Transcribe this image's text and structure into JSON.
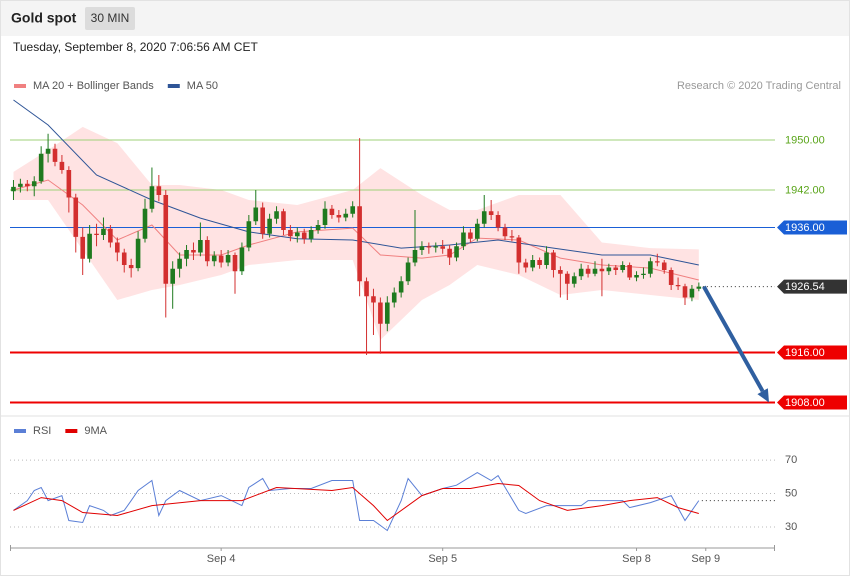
{
  "header": {
    "title": "Gold spot",
    "timeframe": "30 MIN",
    "timestamp": "Tuesday, September 8, 2020 7:06:56 AM CET"
  },
  "chart_data": [
    {
      "type": "candlestick",
      "credit": "Research © 2020 Trading Central",
      "xlim": [
        -0.5,
        110
      ],
      "ylim": [
        1906,
        1957.2
      ],
      "up_color": "#1f7a1f",
      "down_color": "#d32f2f",
      "candles": [
        [
          1941.8,
          1943.6,
          1940.4,
          1942.5
        ],
        [
          1942.5,
          1943.8,
          1941.6,
          1943.0
        ],
        [
          1943.0,
          1943.6,
          1941.8,
          1942.6
        ],
        [
          1942.6,
          1944.2,
          1941.0,
          1943.4
        ],
        [
          1943.4,
          1949.0,
          1943.0,
          1947.8
        ],
        [
          1947.8,
          1951.0,
          1946.4,
          1948.6
        ],
        [
          1948.6,
          1949.4,
          1945.8,
          1946.5
        ],
        [
          1946.5,
          1947.6,
          1944.6,
          1945.2
        ],
        [
          1945.2,
          1945.8,
          1938.4,
          1940.8
        ],
        [
          1940.8,
          1941.4,
          1932.0,
          1934.5
        ],
        [
          1934.5,
          1936.0,
          1928.4,
          1931.0
        ],
        [
          1931.0,
          1936.4,
          1930.4,
          1935.0
        ],
        [
          1935.0,
          1936.6,
          1933.0,
          1934.8
        ],
        [
          1934.8,
          1937.6,
          1934.0,
          1935.8
        ],
        [
          1935.8,
          1936.4,
          1932.8,
          1933.6
        ],
        [
          1933.6,
          1934.4,
          1930.6,
          1932.0
        ],
        [
          1932.0,
          1932.6,
          1928.8,
          1930.0
        ],
        [
          1930.0,
          1931.0,
          1928.0,
          1929.5
        ],
        [
          1929.5,
          1935.4,
          1929.0,
          1934.2
        ],
        [
          1934.2,
          1940.6,
          1933.6,
          1939.0
        ],
        [
          1939.0,
          1945.6,
          1938.4,
          1942.6
        ],
        [
          1942.6,
          1944.4,
          1940.2,
          1941.2
        ],
        [
          1941.2,
          1942.0,
          1921.6,
          1927.0
        ],
        [
          1927.0,
          1930.6,
          1923.0,
          1929.4
        ],
        [
          1929.4,
          1932.0,
          1928.0,
          1931.0
        ],
        [
          1931.0,
          1933.2,
          1929.8,
          1932.4
        ],
        [
          1932.4,
          1933.6,
          1930.8,
          1932.0
        ],
        [
          1932.0,
          1936.8,
          1931.4,
          1934.0
        ],
        [
          1934.0,
          1934.6,
          1929.8,
          1930.6
        ],
        [
          1930.6,
          1932.2,
          1929.8,
          1931.5
        ],
        [
          1931.5,
          1932.4,
          1929.6,
          1930.4
        ],
        [
          1930.4,
          1932.4,
          1929.8,
          1931.6
        ],
        [
          1931.6,
          1932.0,
          1925.4,
          1929.0
        ],
        [
          1929.0,
          1933.6,
          1928.4,
          1932.8
        ],
        [
          1932.8,
          1938.0,
          1932.2,
          1937.0
        ],
        [
          1937.0,
          1942.0,
          1936.4,
          1939.2
        ],
        [
          1939.2,
          1940.0,
          1934.2,
          1935.0
        ],
        [
          1935.0,
          1938.2,
          1934.4,
          1937.4
        ],
        [
          1937.4,
          1939.4,
          1936.6,
          1938.6
        ],
        [
          1938.6,
          1939.0,
          1934.8,
          1935.6
        ],
        [
          1935.6,
          1936.4,
          1933.8,
          1934.6
        ],
        [
          1934.6,
          1936.0,
          1933.6,
          1935.2
        ],
        [
          1935.2,
          1935.8,
          1933.4,
          1934.2
        ],
        [
          1934.2,
          1936.2,
          1933.6,
          1935.6
        ],
        [
          1935.6,
          1937.2,
          1935.0,
          1936.4
        ],
        [
          1936.4,
          1940.2,
          1935.8,
          1939.0
        ],
        [
          1939.0,
          1939.6,
          1937.4,
          1938.0
        ],
        [
          1938.0,
          1938.8,
          1936.8,
          1937.6
        ],
        [
          1937.6,
          1939.0,
          1937.0,
          1938.2
        ],
        [
          1938.2,
          1940.2,
          1937.6,
          1939.4
        ],
        [
          1939.4,
          1950.3,
          1925.0,
          1927.4
        ],
        [
          1927.4,
          1928.0,
          1915.6,
          1925.0
        ],
        [
          1925.0,
          1926.2,
          1918.8,
          1924.0
        ],
        [
          1924.0,
          1924.8,
          1915.8,
          1920.6
        ],
        [
          1920.6,
          1925.0,
          1919.4,
          1924.0
        ],
        [
          1924.0,
          1926.4,
          1923.2,
          1925.6
        ],
        [
          1925.6,
          1928.2,
          1924.8,
          1927.4
        ],
        [
          1927.4,
          1931.2,
          1926.8,
          1930.4
        ],
        [
          1930.4,
          1938.8,
          1929.8,
          1932.4
        ],
        [
          1932.4,
          1933.8,
          1931.6,
          1933.0
        ],
        [
          1933.0,
          1933.6,
          1931.8,
          1932.8
        ],
        [
          1932.8,
          1933.6,
          1932.0,
          1933.0
        ],
        [
          1933.0,
          1934.0,
          1931.8,
          1932.6
        ],
        [
          1932.6,
          1933.2,
          1930.0,
          1931.2
        ],
        [
          1931.2,
          1933.6,
          1930.6,
          1933.0
        ],
        [
          1933.0,
          1936.2,
          1932.4,
          1935.2
        ],
        [
          1935.2,
          1935.8,
          1933.6,
          1934.2
        ],
        [
          1934.2,
          1937.4,
          1933.8,
          1936.6
        ],
        [
          1936.6,
          1941.2,
          1936.0,
          1938.6
        ],
        [
          1938.6,
          1940.4,
          1937.2,
          1938.0
        ],
        [
          1938.0,
          1938.6,
          1935.4,
          1936.0
        ],
        [
          1936.0,
          1936.6,
          1934.0,
          1934.6
        ],
        [
          1934.6,
          1935.6,
          1933.8,
          1934.4
        ],
        [
          1934.4,
          1934.8,
          1928.6,
          1930.4
        ],
        [
          1930.4,
          1931.0,
          1928.8,
          1929.6
        ],
        [
          1929.6,
          1931.6,
          1929.0,
          1930.8
        ],
        [
          1930.8,
          1931.2,
          1929.4,
          1930.0
        ],
        [
          1930.0,
          1933.0,
          1929.4,
          1932.0
        ],
        [
          1932.0,
          1932.4,
          1928.0,
          1929.2
        ],
        [
          1929.2,
          1929.8,
          1924.8,
          1928.6
        ],
        [
          1928.6,
          1929.0,
          1924.4,
          1927.0
        ],
        [
          1927.0,
          1928.8,
          1926.4,
          1928.2
        ],
        [
          1928.2,
          1930.2,
          1927.6,
          1929.4
        ],
        [
          1929.4,
          1930.0,
          1928.0,
          1928.6
        ],
        [
          1928.6,
          1930.6,
          1928.2,
          1929.4
        ],
        [
          1929.4,
          1931.0,
          1925.0,
          1929.0
        ],
        [
          1929.0,
          1930.2,
          1928.4,
          1929.6
        ],
        [
          1929.6,
          1930.0,
          1928.4,
          1929.2
        ],
        [
          1929.2,
          1930.6,
          1928.8,
          1930.0
        ],
        [
          1930.0,
          1930.4,
          1927.6,
          1928.0
        ],
        [
          1928.0,
          1929.0,
          1927.4,
          1928.4
        ],
        [
          1928.4,
          1929.6,
          1927.8,
          1928.6
        ],
        [
          1928.6,
          1931.2,
          1928.0,
          1930.6
        ],
        [
          1930.6,
          1931.8,
          1929.8,
          1930.4
        ],
        [
          1930.4,
          1930.8,
          1928.6,
          1929.2
        ],
        [
          1929.2,
          1929.6,
          1926.0,
          1926.8
        ],
        [
          1926.8,
          1928.0,
          1926.0,
          1926.6
        ],
        [
          1926.6,
          1927.0,
          1923.6,
          1924.8
        ],
        [
          1924.8,
          1926.8,
          1924.2,
          1926.2
        ],
        [
          1926.2,
          1927.2,
          1925.8,
          1926.54
        ]
      ],
      "series": [
        {
          "name": "MA 20 + Bollinger Bands",
          "color": "#f08080",
          "band_color": "#ffe3e3",
          "x": [
            0,
            5,
            10,
            15,
            20,
            24,
            30,
            34,
            41,
            49,
            53,
            59,
            63,
            67,
            73,
            79,
            85,
            92,
            99
          ],
          "values": [
            1942,
            1943.6,
            1939.6,
            1934,
            1936.4,
            1931.6,
            1931.6,
            1933.2,
            1935.3,
            1935.9,
            1931.6,
            1931.1,
            1931.6,
            1934.3,
            1934,
            1931.1,
            1930,
            1929.5,
            1927.6
          ],
          "upper": [
            1944.9,
            1948.4,
            1952.1,
            1949.5,
            1942.8,
            1942.8,
            1942,
            1940.4,
            1939.6,
            1942,
            1945.5,
            1941.2,
            1938.8,
            1938.8,
            1941.2,
            1941.2,
            1933.6,
            1932.7,
            1932.5
          ],
          "lower": [
            1940.4,
            1940.4,
            1932.4,
            1924.4,
            1926,
            1926.8,
            1928.4,
            1930,
            1930.8,
            1930.8,
            1918,
            1924.4,
            1926.8,
            1930,
            1928.4,
            1925.2,
            1926,
            1925.2,
            1924.4
          ]
        },
        {
          "name": "MA 50",
          "color": "#2f5597",
          "x": [
            0,
            5,
            12,
            20,
            27,
            34,
            41,
            49,
            56,
            63,
            70,
            78,
            85,
            92,
            99
          ],
          "values": [
            1956.4,
            1952.4,
            1944.4,
            1940.4,
            1937.5,
            1935.3,
            1934.2,
            1934,
            1932.7,
            1933.2,
            1934,
            1932.7,
            1931.6,
            1931.6,
            1930
          ]
        }
      ],
      "levels": [
        {
          "value": 1950,
          "label": "1950.00",
          "color": "#9fd27a",
          "text_color": "#5aa51a",
          "line": "thin",
          "tag": false
        },
        {
          "value": 1942,
          "label": "1942.00",
          "color": "#9fd27a",
          "text_color": "#5aa51a",
          "line": "thin",
          "tag": false
        },
        {
          "value": 1936,
          "label": "1936.00",
          "color": "#1a5fd6",
          "text_color": "#ffffff",
          "line": "thin",
          "tag": true
        },
        {
          "value": 1926.54,
          "label": "1926.54",
          "color": "#333333",
          "text_color": "#ffffff",
          "line": "dotted",
          "tag": true
        },
        {
          "value": 1916,
          "label": "1916.00",
          "color": "#ee0000",
          "text_color": "#ffffff",
          "line": "thick",
          "tag": true
        },
        {
          "value": 1908,
          "label": "1908.00",
          "color": "#ee0000",
          "text_color": "#ffffff",
          "line": "thick",
          "tag": true
        }
      ]
    },
    {
      "type": "line",
      "xlim": [
        -0.5,
        110
      ],
      "ylim": [
        20,
        82
      ],
      "yticks": [
        30,
        50,
        70
      ],
      "xticks": [
        {
          "value": 30,
          "label": "Sep 4"
        },
        {
          "value": 62,
          "label": "Sep 5"
        },
        {
          "value": 90,
          "label": "Sep 8"
        },
        {
          "value": 100,
          "label": "Sep 9"
        }
      ],
      "series": [
        {
          "name": "RSI",
          "color": "#5b7fd6",
          "x": [
            0,
            2,
            3,
            4,
            5,
            7,
            8,
            10,
            11,
            13,
            14,
            16,
            17,
            18,
            20,
            21,
            22,
            24,
            27,
            30,
            33,
            34,
            36,
            37,
            40,
            43,
            46,
            49,
            50,
            52,
            54,
            56,
            57,
            59,
            62,
            64,
            67,
            69,
            70,
            73,
            74,
            77,
            80,
            82,
            83,
            85,
            88,
            89,
            92,
            95,
            97,
            99
          ],
          "values": [
            39.9,
            45.8,
            51.8,
            53.6,
            45.8,
            48.8,
            33.9,
            32.7,
            42.8,
            39.9,
            36.9,
            39.9,
            45.8,
            51.8,
            57.8,
            36.9,
            45.8,
            51.8,
            45.8,
            48.8,
            42.8,
            53.6,
            59,
            51.8,
            53,
            53,
            57.8,
            57.8,
            33.9,
            33.9,
            27.9,
            45.8,
            59,
            48.8,
            53,
            55,
            62.5,
            57.8,
            60.7,
            39.9,
            38.1,
            42.8,
            42.8,
            42.8,
            45.8,
            45.8,
            45.8,
            41.6,
            44.6,
            48.8,
            33.9,
            45.8
          ]
        },
        {
          "name": "9MA",
          "color": "#e00000",
          "x": [
            0,
            4,
            7,
            10,
            15,
            20,
            27,
            33,
            38,
            46,
            49,
            52,
            54,
            59,
            62,
            66,
            70,
            73,
            76,
            80,
            85,
            89,
            93,
            96,
            99
          ],
          "values": [
            39.9,
            47.6,
            45.8,
            38.7,
            36.9,
            42.8,
            45.8,
            45.8,
            53.6,
            51.8,
            53.6,
            42.8,
            33.9,
            48.8,
            53,
            53,
            56,
            54.8,
            45.8,
            39.9,
            42.8,
            45.8,
            47.6,
            41.6,
            38.1
          ]
        }
      ]
    }
  ]
}
